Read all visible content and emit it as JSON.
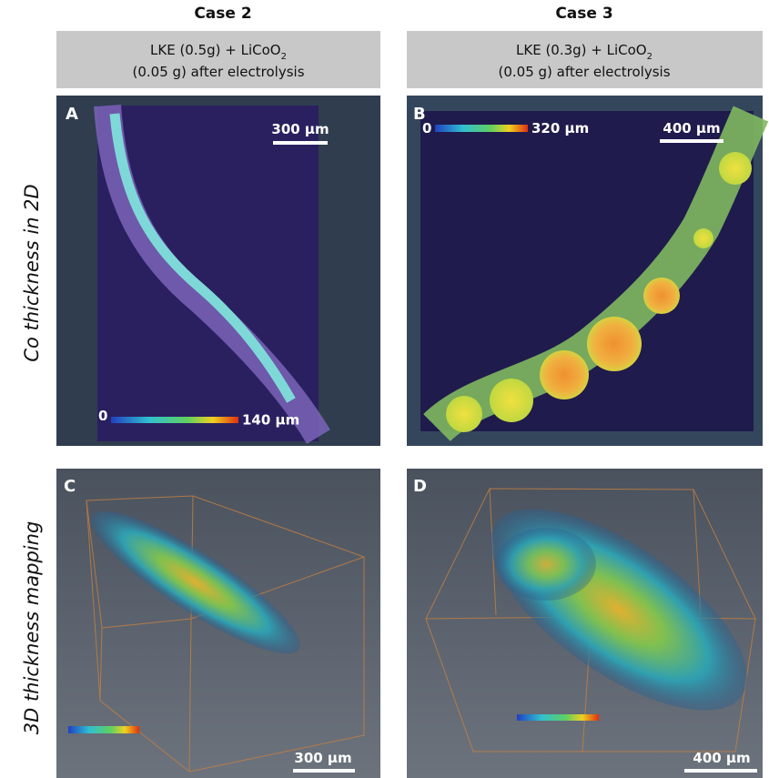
{
  "columns": [
    {
      "title": "Case 2",
      "condition": {
        "line1": "LKE (0.5g) + LiCoO",
        "subscript": "2",
        "line2": "(0.05 g) after electrolysis"
      }
    },
    {
      "title": "Case 3",
      "condition": {
        "line1": "LKE (0.3g) + LiCoO",
        "subscript": "2",
        "line2": "(0.05 g) after electrolysis"
      }
    }
  ],
  "rows": [
    {
      "label": "Co thickness in 2D"
    },
    {
      "label": "3D thickness mapping"
    }
  ],
  "panels": [
    {
      "letter": "A",
      "scale_bar": "300 µm",
      "colorbar": {
        "min": "0",
        "max": "140 µm"
      }
    },
    {
      "letter": "B",
      "scale_bar": "400 µm",
      "colorbar": {
        "min": "0",
        "max": "320 µm"
      }
    },
    {
      "letter": "C",
      "scale_bar": "300 µm"
    },
    {
      "letter": "D",
      "scale_bar": "400 µm"
    }
  ]
}
